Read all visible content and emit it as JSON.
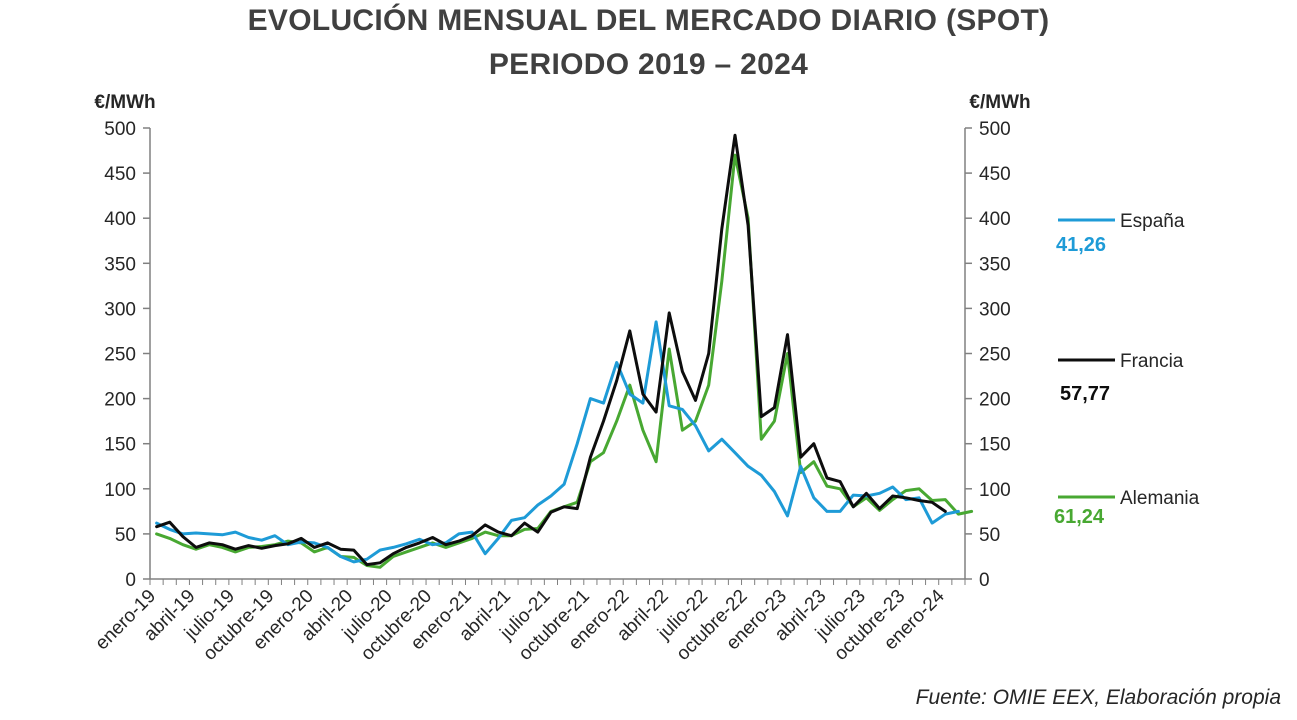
{
  "chart_data": {
    "type": "line",
    "title": "EVOLUCIÓN MENSUAL DEL MERCADO DIARIO (SPOT)",
    "subtitle": "PERIODO 2019 – 2024",
    "ylabel_left": "€/MWh",
    "ylabel_right": "€/MWh",
    "ylim": [
      0,
      500
    ],
    "yticks": [
      "0",
      "50",
      "100",
      "150",
      "200",
      "250",
      "300",
      "350",
      "400",
      "450",
      "500"
    ],
    "x_tick_labels": [
      "enero-19",
      "abril-19",
      "julio-19",
      "octubre-19",
      "enero-20",
      "abril-20",
      "julio-20",
      "octubre-20",
      "enero-21",
      "abril-21",
      "julio-21",
      "octubre-21",
      "enero-22",
      "abril-22",
      "julio-22",
      "octubre-22",
      "enero-23",
      "abril-23",
      "julio-23",
      "octubre-23",
      "enero-24"
    ],
    "grid": false,
    "legend_position": "right",
    "series": [
      {
        "name": "España",
        "color": "#1E9BD7",
        "legend_value": "41,26",
        "values": [
          62,
          55,
          50,
          51,
          50,
          49,
          52,
          46,
          43,
          48,
          38,
          41,
          40,
          35,
          25,
          19,
          22,
          32,
          35,
          39,
          44,
          38,
          40,
          50,
          52,
          28,
          45,
          65,
          68,
          82,
          92,
          105,
          150,
          200,
          195,
          240,
          205,
          195,
          285,
          192,
          188,
          170,
          142,
          155,
          140,
          125,
          115,
          97,
          70,
          125,
          90,
          75,
          75,
          93,
          92,
          95,
          102,
          88,
          90,
          62,
          72,
          75
        ]
      },
      {
        "name": "Francia",
        "color": "#0D0D0D",
        "legend_value": "57,77",
        "values": [
          58,
          63,
          47,
          35,
          40,
          38,
          33,
          37,
          34,
          37,
          39,
          45,
          35,
          40,
          33,
          32,
          16,
          18,
          28,
          35,
          40,
          46,
          38,
          42,
          48,
          60,
          52,
          48,
          62,
          52,
          74,
          80,
          78,
          135,
          175,
          220,
          275,
          205,
          185,
          295,
          230,
          198,
          250,
          388,
          492,
          392,
          180,
          190,
          271,
          135,
          150,
          112,
          108,
          80,
          95,
          78,
          92,
          90,
          87,
          85,
          75
        ]
      },
      {
        "name": "Alemania",
        "color": "#48A832",
        "legend_value": "61,24",
        "values": [
          50,
          45,
          38,
          33,
          38,
          35,
          30,
          35,
          36,
          38,
          42,
          40,
          30,
          35,
          25,
          24,
          15,
          13,
          25,
          30,
          35,
          40,
          35,
          40,
          45,
          52,
          48,
          48,
          55,
          56,
          75,
          80,
          85,
          130,
          140,
          175,
          215,
          165,
          130,
          255,
          165,
          175,
          215,
          330,
          470,
          400,
          155,
          175,
          250,
          118,
          130,
          103,
          100,
          80,
          90,
          76,
          88,
          98,
          100,
          87,
          88,
          72,
          75
        ]
      }
    ],
    "source": "Fuente: OMIE EEX, Elaboración propia"
  }
}
